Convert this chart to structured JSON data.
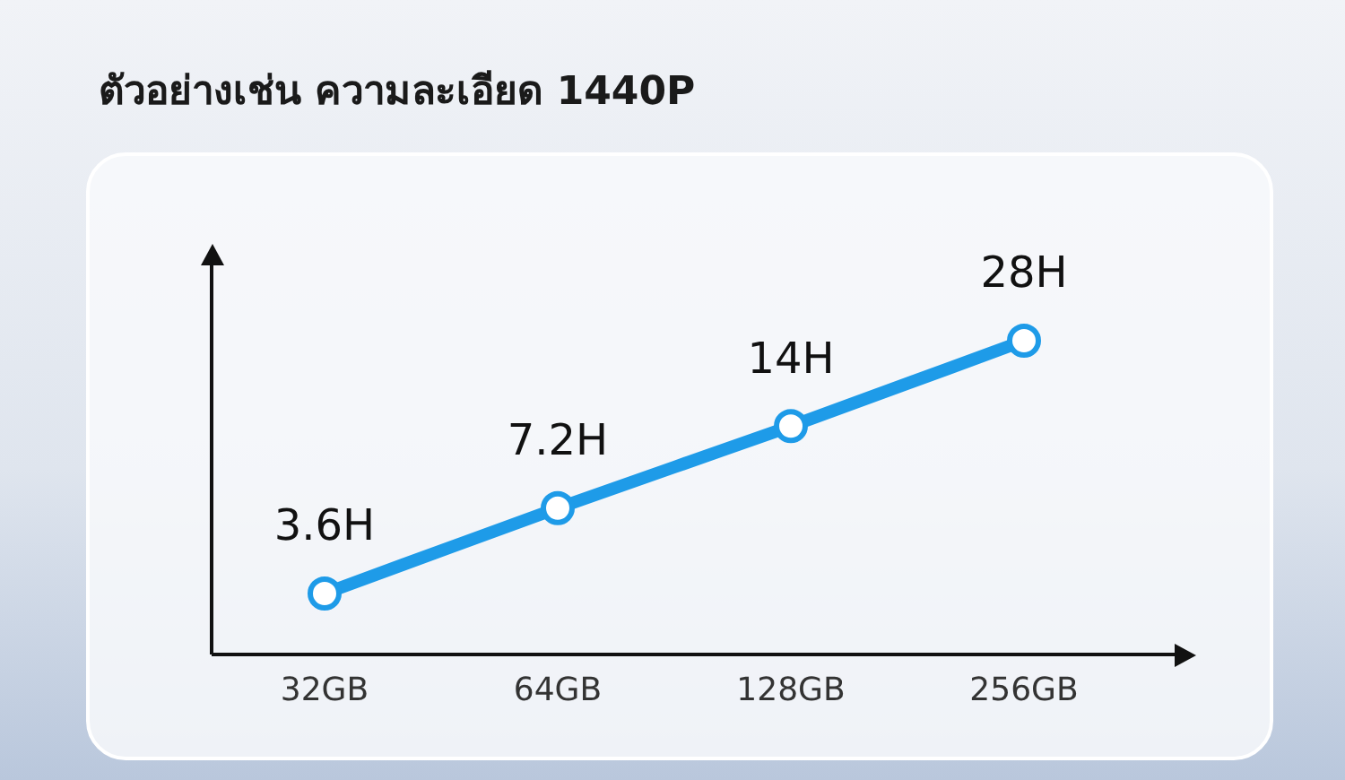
{
  "chart_data": {
    "type": "line",
    "title": "ตัวอย่างเช่น ความละเอียด 1440P",
    "categories": [
      "32GB",
      "64GB",
      "128GB",
      "256GB"
    ],
    "series": [
      {
        "color": "#1e9be8",
        "values": [
          3.6,
          7.2,
          14,
          28
        ],
        "value_labels": [
          "3.6H",
          "7.2H",
          "14H",
          "28H"
        ]
      }
    ],
    "log": true,
    "tick_labels": "x",
    "grid": false,
    "legend": false,
    "marker": "circle",
    "line_style": "solid"
  }
}
